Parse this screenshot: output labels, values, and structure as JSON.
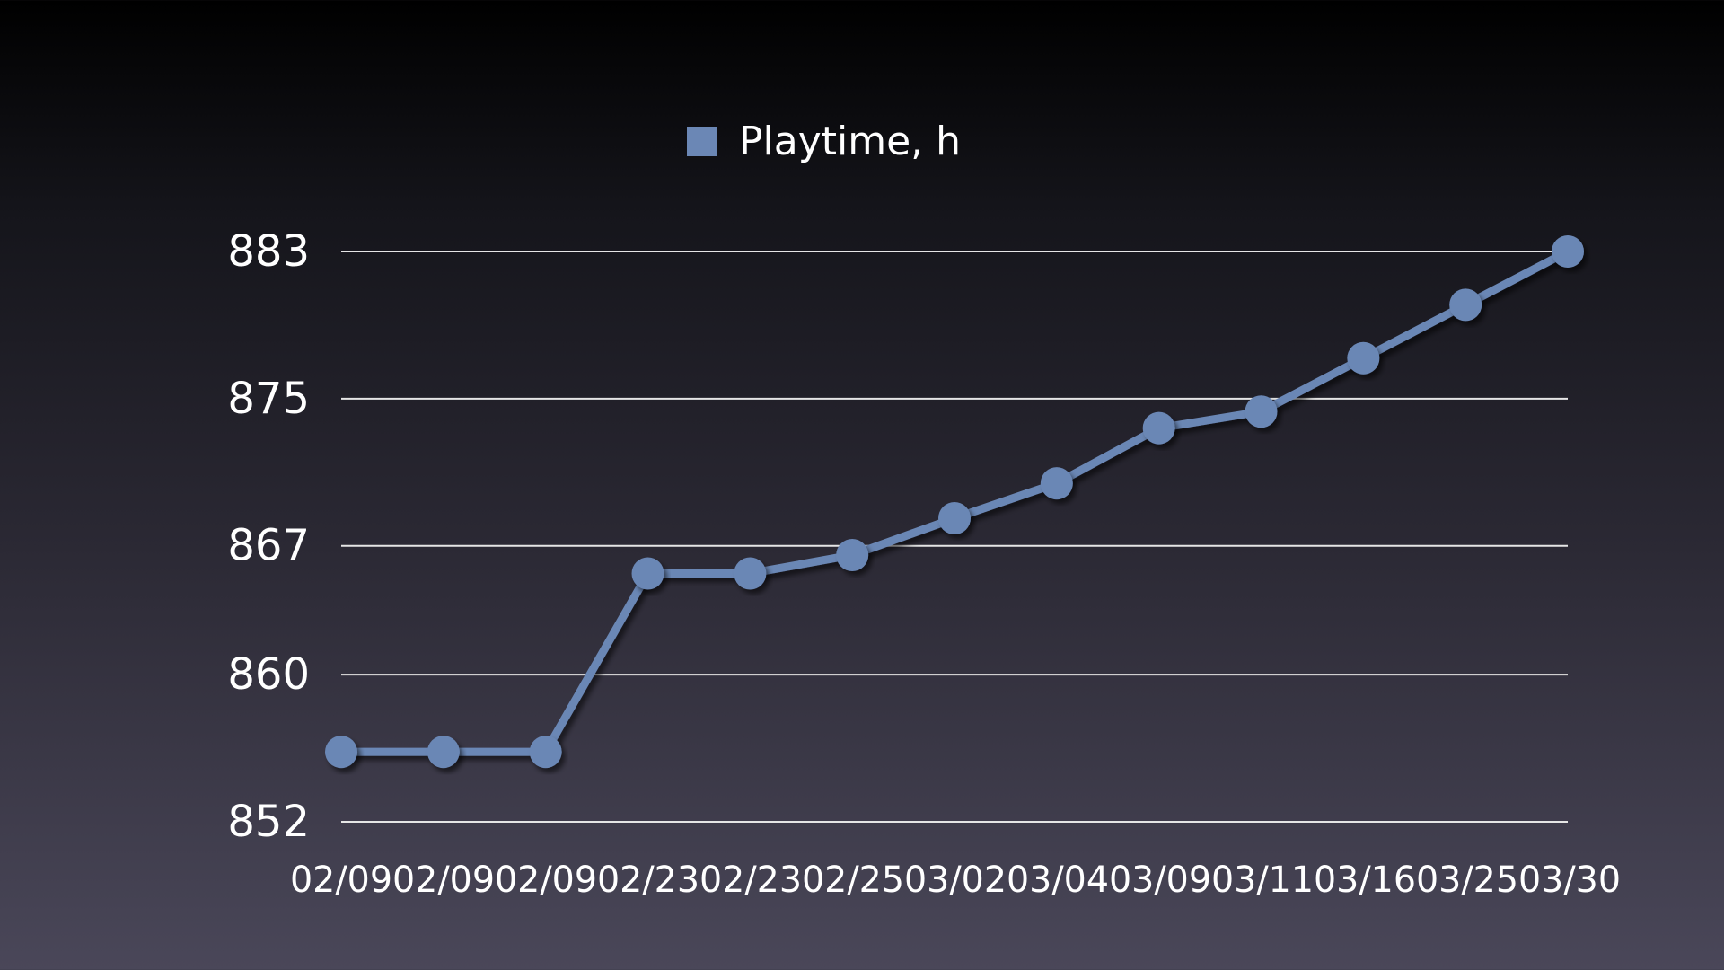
{
  "chart_data": {
    "type": "line",
    "legend_position": "top-center",
    "grid": true,
    "x": [
      "02/09",
      "02/09",
      "02/09",
      "02/23",
      "02/23",
      "02/25",
      "03/02",
      "03/04",
      "03/09",
      "03/11",
      "03/16",
      "03/25",
      "03/30"
    ],
    "yticks": [
      "852",
      "860",
      "867",
      "875",
      "883"
    ],
    "ylim": [
      852,
      883
    ],
    "series": [
      {
        "name": "Playtime, h",
        "color": "#6b87b5",
        "values": [
          855.8,
          855.8,
          855.8,
          865.5,
          865.5,
          866.5,
          868.5,
          870.4,
          873.4,
          874.3,
          877.2,
          880.1,
          883.0
        ]
      }
    ]
  }
}
